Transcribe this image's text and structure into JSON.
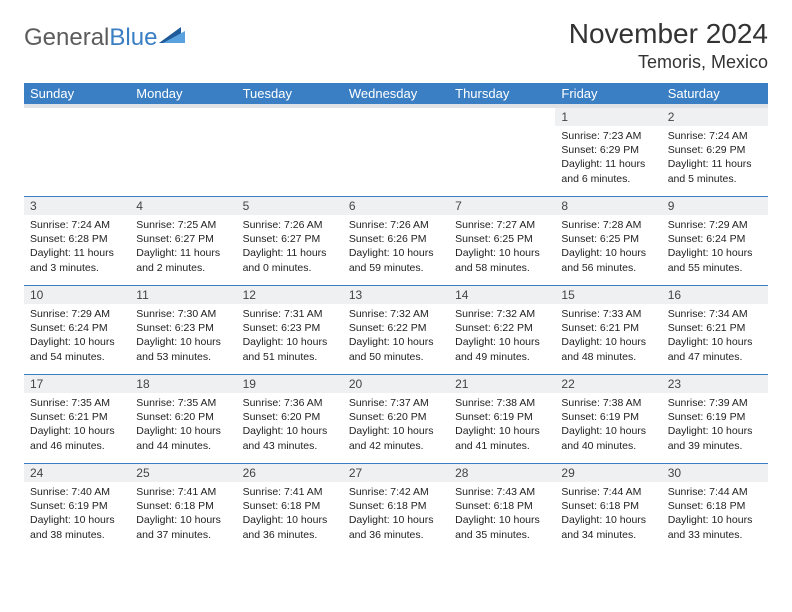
{
  "branding": {
    "text_general": "General",
    "text_blue": "Blue",
    "general_color": "#5c5c5c",
    "blue_color": "#3a7fc4",
    "tri_dark": "#1f5a99",
    "tri_light": "#5aa1e0"
  },
  "title": {
    "month": "November 2024",
    "location": "Temoris, Mexico",
    "month_fontsize": 28,
    "location_fontsize": 18,
    "text_color": "#333333"
  },
  "colors": {
    "header_bg": "#3a7fc4",
    "header_text": "#ffffff",
    "daynum_bg": "#eef0f2",
    "cell_border": "#3a7fc4",
    "body_text": "#222222",
    "header_underband": "#dfe3e7",
    "page_bg": "#ffffff"
  },
  "weekdays": [
    "Sunday",
    "Monday",
    "Tuesday",
    "Wednesday",
    "Thursday",
    "Friday",
    "Saturday"
  ],
  "weeks": [
    [
      null,
      null,
      null,
      null,
      null,
      {
        "n": "1",
        "sr": "Sunrise: 7:23 AM",
        "ss": "Sunset: 6:29 PM",
        "dl": "Daylight: 11 hours and 6 minutes."
      },
      {
        "n": "2",
        "sr": "Sunrise: 7:24 AM",
        "ss": "Sunset: 6:29 PM",
        "dl": "Daylight: 11 hours and 5 minutes."
      }
    ],
    [
      {
        "n": "3",
        "sr": "Sunrise: 7:24 AM",
        "ss": "Sunset: 6:28 PM",
        "dl": "Daylight: 11 hours and 3 minutes."
      },
      {
        "n": "4",
        "sr": "Sunrise: 7:25 AM",
        "ss": "Sunset: 6:27 PM",
        "dl": "Daylight: 11 hours and 2 minutes."
      },
      {
        "n": "5",
        "sr": "Sunrise: 7:26 AM",
        "ss": "Sunset: 6:27 PM",
        "dl": "Daylight: 11 hours and 0 minutes."
      },
      {
        "n": "6",
        "sr": "Sunrise: 7:26 AM",
        "ss": "Sunset: 6:26 PM",
        "dl": "Daylight: 10 hours and 59 minutes."
      },
      {
        "n": "7",
        "sr": "Sunrise: 7:27 AM",
        "ss": "Sunset: 6:25 PM",
        "dl": "Daylight: 10 hours and 58 minutes."
      },
      {
        "n": "8",
        "sr": "Sunrise: 7:28 AM",
        "ss": "Sunset: 6:25 PM",
        "dl": "Daylight: 10 hours and 56 minutes."
      },
      {
        "n": "9",
        "sr": "Sunrise: 7:29 AM",
        "ss": "Sunset: 6:24 PM",
        "dl": "Daylight: 10 hours and 55 minutes."
      }
    ],
    [
      {
        "n": "10",
        "sr": "Sunrise: 7:29 AM",
        "ss": "Sunset: 6:24 PM",
        "dl": "Daylight: 10 hours and 54 minutes."
      },
      {
        "n": "11",
        "sr": "Sunrise: 7:30 AM",
        "ss": "Sunset: 6:23 PM",
        "dl": "Daylight: 10 hours and 53 minutes."
      },
      {
        "n": "12",
        "sr": "Sunrise: 7:31 AM",
        "ss": "Sunset: 6:23 PM",
        "dl": "Daylight: 10 hours and 51 minutes."
      },
      {
        "n": "13",
        "sr": "Sunrise: 7:32 AM",
        "ss": "Sunset: 6:22 PM",
        "dl": "Daylight: 10 hours and 50 minutes."
      },
      {
        "n": "14",
        "sr": "Sunrise: 7:32 AM",
        "ss": "Sunset: 6:22 PM",
        "dl": "Daylight: 10 hours and 49 minutes."
      },
      {
        "n": "15",
        "sr": "Sunrise: 7:33 AM",
        "ss": "Sunset: 6:21 PM",
        "dl": "Daylight: 10 hours and 48 minutes."
      },
      {
        "n": "16",
        "sr": "Sunrise: 7:34 AM",
        "ss": "Sunset: 6:21 PM",
        "dl": "Daylight: 10 hours and 47 minutes."
      }
    ],
    [
      {
        "n": "17",
        "sr": "Sunrise: 7:35 AM",
        "ss": "Sunset: 6:21 PM",
        "dl": "Daylight: 10 hours and 46 minutes."
      },
      {
        "n": "18",
        "sr": "Sunrise: 7:35 AM",
        "ss": "Sunset: 6:20 PM",
        "dl": "Daylight: 10 hours and 44 minutes."
      },
      {
        "n": "19",
        "sr": "Sunrise: 7:36 AM",
        "ss": "Sunset: 6:20 PM",
        "dl": "Daylight: 10 hours and 43 minutes."
      },
      {
        "n": "20",
        "sr": "Sunrise: 7:37 AM",
        "ss": "Sunset: 6:20 PM",
        "dl": "Daylight: 10 hours and 42 minutes."
      },
      {
        "n": "21",
        "sr": "Sunrise: 7:38 AM",
        "ss": "Sunset: 6:19 PM",
        "dl": "Daylight: 10 hours and 41 minutes."
      },
      {
        "n": "22",
        "sr": "Sunrise: 7:38 AM",
        "ss": "Sunset: 6:19 PM",
        "dl": "Daylight: 10 hours and 40 minutes."
      },
      {
        "n": "23",
        "sr": "Sunrise: 7:39 AM",
        "ss": "Sunset: 6:19 PM",
        "dl": "Daylight: 10 hours and 39 minutes."
      }
    ],
    [
      {
        "n": "24",
        "sr": "Sunrise: 7:40 AM",
        "ss": "Sunset: 6:19 PM",
        "dl": "Daylight: 10 hours and 38 minutes."
      },
      {
        "n": "25",
        "sr": "Sunrise: 7:41 AM",
        "ss": "Sunset: 6:18 PM",
        "dl": "Daylight: 10 hours and 37 minutes."
      },
      {
        "n": "26",
        "sr": "Sunrise: 7:41 AM",
        "ss": "Sunset: 6:18 PM",
        "dl": "Daylight: 10 hours and 36 minutes."
      },
      {
        "n": "27",
        "sr": "Sunrise: 7:42 AM",
        "ss": "Sunset: 6:18 PM",
        "dl": "Daylight: 10 hours and 36 minutes."
      },
      {
        "n": "28",
        "sr": "Sunrise: 7:43 AM",
        "ss": "Sunset: 6:18 PM",
        "dl": "Daylight: 10 hours and 35 minutes."
      },
      {
        "n": "29",
        "sr": "Sunrise: 7:44 AM",
        "ss": "Sunset: 6:18 PM",
        "dl": "Daylight: 10 hours and 34 minutes."
      },
      {
        "n": "30",
        "sr": "Sunrise: 7:44 AM",
        "ss": "Sunset: 6:18 PM",
        "dl": "Daylight: 10 hours and 33 minutes."
      }
    ]
  ]
}
